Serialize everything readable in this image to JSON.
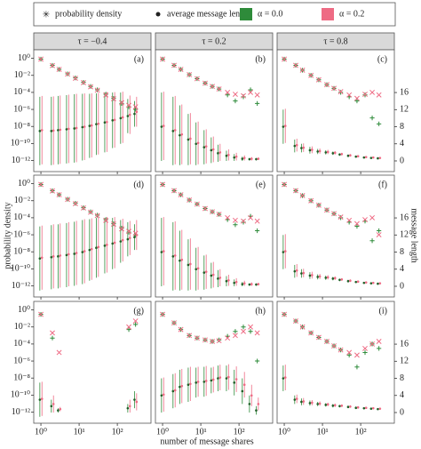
{
  "chart_data": {
    "type": "facet-scatter",
    "legend": {
      "markers": [
        "probability density",
        "average message length"
      ],
      "series": [
        {
          "name": "α = 0.0",
          "color": "#2e8b3a"
        },
        {
          "name": "α = 0.2",
          "color": "#ee6b84"
        }
      ]
    },
    "columns": [
      "τ = −0.4",
      "τ = 0.2",
      "τ = 0.8"
    ],
    "xlabel": "number of message shares",
    "ylabel": "probability density",
    "y2label": "message length",
    "log_x": true,
    "log_y": true,
    "x": [
      1,
      2,
      3,
      5,
      8,
      13,
      20,
      30,
      50,
      80,
      130,
      200,
      300
    ],
    "xlim": [
      0.65,
      760
    ],
    "xticks": [
      {
        "value": 1,
        "label": "10⁰"
      },
      {
        "value": 10,
        "label": "10¹"
      },
      {
        "value": 100,
        "label": "10²"
      }
    ],
    "ylim": [
      5e-14,
      10
    ],
    "yticks": [
      {
        "value": 1,
        "label": "10⁰"
      },
      {
        "value": 0.01,
        "label": "10⁻²"
      },
      {
        "value": 0.0001,
        "label": "10⁻⁴"
      },
      {
        "value": 1e-06,
        "label": "10⁻⁶"
      },
      {
        "value": 1e-08,
        "label": "10⁻⁸"
      },
      {
        "value": 1e-10,
        "label": "10⁻¹⁰"
      },
      {
        "value": 1e-12,
        "label": "10⁻¹²"
      }
    ],
    "y2lim": [
      -2.5,
      26
    ],
    "y2ticks": [
      0,
      4,
      8,
      12,
      16
    ],
    "panels": [
      {
        "label": "(a)",
        "series": [
          {
            "density": [
              0.8,
              0.15,
              0.05,
              0.015,
              0.005,
              0.0015,
              0.0005,
              0.0002,
              6e-05,
              2e-05,
              5e-06,
              2e-06,
              1e-06
            ],
            "length": [
              7,
              7,
              7.2,
              7.4,
              7.6,
              7.9,
              8.2,
              8.6,
              9,
              9.5,
              10,
              10.5,
              11
            ],
            "length_err": [
              8,
              8,
              8,
              8,
              8,
              7.8,
              7.5,
              7.2,
              7,
              6.5,
              6,
              4,
              3
            ]
          },
          {
            "density": [
              0.8,
              0.14,
              0.05,
              0.014,
              0.0045,
              0.0014,
              0.00045,
              0.00018,
              5e-05,
              1.8e-05,
              6e-06,
              3e-06,
              2e-06
            ],
            "length": [
              7.2,
              7.1,
              7.3,
              7.5,
              7.7,
              8,
              8.3,
              8.7,
              9.1,
              9.6,
              10.2,
              10.8,
              11.5
            ],
            "length_err": [
              8,
              8,
              8,
              8,
              8,
              7.8,
              7.5,
              7.2,
              7,
              6.5,
              6,
              4.5,
              3.5
            ]
          }
        ]
      },
      {
        "label": "(b)",
        "series": [
          {
            "density": [
              0.8,
              0.15,
              0.05,
              0.012,
              0.004,
              0.0012,
              0.0005,
              0.00025,
              5e-05,
              1e-05,
              3e-05,
              0.0002,
              5e-06
            ],
            "length": [
              8,
              7,
              6,
              5,
              4,
              3.2,
              2.5,
              1.8,
              1.2,
              0.8,
              0.5,
              0.4,
              0.4
            ],
            "length_err": [
              8,
              8,
              7,
              6,
              5,
              4,
              3,
              2,
              1.2,
              0.8,
              0.5,
              0.3,
              0.3
            ]
          },
          {
            "density": [
              0.8,
              0.15,
              0.05,
              0.012,
              0.004,
              0.0012,
              0.0005,
              0.00025,
              0.0001,
              6e-05,
              4e-05,
              0.0001,
              5e-05
            ],
            "length": [
              8.2,
              7.2,
              6.2,
              5.2,
              4.2,
              3.4,
              2.7,
              2,
              1.4,
              1,
              0.7,
              0.5,
              0.5
            ],
            "length_err": [
              8,
              8,
              7,
              6,
              5,
              4,
              3,
              2,
              1.3,
              0.9,
              0.6,
              0.4,
              0.3
            ]
          }
        ]
      },
      {
        "label": "(c)",
        "series": [
          {
            "density": [
              0.8,
              0.15,
              0.04,
              0.01,
              0.003,
              0.0008,
              0.0003,
              0.0001,
              3e-05,
              1e-05,
              5e-05,
              1e-07,
              2e-08
            ],
            "length": [
              8,
              3.5,
              3,
              2.5,
              2.2,
              2,
              1.8,
              1.5,
              1.2,
              1,
              0.8,
              0.7,
              0.6
            ],
            "length_err": [
              4,
              1.5,
              1,
              0.8,
              0.6,
              0.5,
              0.4,
              0.3,
              0.3,
              0.2,
              0.2,
              0.2,
              0.2
            ]
          },
          {
            "density": [
              0.8,
              0.15,
              0.04,
              0.01,
              0.003,
              0.0008,
              0.0003,
              0.00012,
              5e-05,
              2e-05,
              6e-05,
              0.0001,
              5e-05
            ],
            "length": [
              8.2,
              3.7,
              3.1,
              2.6,
              2.3,
              2.1,
              1.9,
              1.6,
              1.3,
              1.1,
              0.9,
              0.8,
              0.7
            ],
            "length_err": [
              4,
              1.5,
              1,
              0.8,
              0.6,
              0.5,
              0.4,
              0.3,
              0.3,
              0.2,
              0.2,
              0.2,
              0.2
            ]
          }
        ]
      },
      {
        "label": "(d)",
        "series": [
          {
            "density": [
              0.8,
              0.15,
              0.05,
              0.015,
              0.005,
              0.0015,
              0.0005,
              0.0002,
              6e-05,
              2e-05,
              6e-06,
              2e-06,
              1e-06
            ],
            "length": [
              6.5,
              6.8,
              7,
              7.3,
              7.6,
              8,
              8.5,
              9,
              9.5,
              10,
              10.5,
              11,
              11.5
            ],
            "length_err": [
              7.5,
              7.5,
              7.5,
              7.5,
              7.5,
              7.5,
              7.2,
              7,
              6.5,
              6,
              5,
              4,
              3
            ]
          },
          {
            "density": [
              0.8,
              0.14,
              0.05,
              0.014,
              0.0045,
              0.0014,
              0.00045,
              0.00018,
              5e-05,
              1.8e-05,
              5e-06,
              2.5e-06,
              1.5e-06
            ],
            "length": [
              6.7,
              7,
              7.2,
              7.5,
              7.8,
              8.2,
              8.7,
              9.2,
              9.7,
              10.2,
              10.8,
              11.3,
              12
            ],
            "length_err": [
              7.5,
              7.5,
              7.5,
              7.5,
              7.5,
              7.5,
              7.2,
              7,
              6.5,
              6,
              5,
              4,
              3.5
            ]
          }
        ]
      },
      {
        "label": "(e)",
        "series": [
          {
            "density": [
              0.8,
              0.15,
              0.05,
              0.012,
              0.004,
              0.0012,
              0.0005,
              0.00025,
              6e-05,
              1.5e-05,
              3e-05,
              0.00015,
              3e-06
            ],
            "length": [
              8,
              7,
              6,
              5,
              4,
              3.2,
              2.5,
              1.8,
              1.2,
              0.8,
              0.5,
              0.4,
              0.4
            ],
            "length_err": [
              8,
              8,
              7,
              6,
              5,
              4,
              3,
              2,
              1.2,
              0.8,
              0.5,
              0.3,
              0.3
            ]
          },
          {
            "density": [
              0.8,
              0.15,
              0.05,
              0.012,
              0.004,
              0.0012,
              0.0005,
              0.00025,
              0.0001,
              5e-05,
              4e-05,
              0.0001,
              4e-05
            ],
            "length": [
              8.2,
              7.2,
              6.2,
              5.2,
              4.2,
              3.4,
              2.7,
              2,
              1.4,
              1,
              0.7,
              0.5,
              0.5
            ],
            "length_err": [
              8,
              8,
              7,
              6,
              5,
              4,
              3,
              2,
              1.3,
              0.9,
              0.6,
              0.4,
              0.3
            ]
          }
        ]
      },
      {
        "label": "(f)",
        "series": [
          {
            "density": [
              0.8,
              0.15,
              0.04,
              0.01,
              0.003,
              0.0008,
              0.0003,
              0.0001,
              3e-05,
              1e-05,
              4e-05,
              2e-07,
              3e-06
            ],
            "length": [
              8,
              3.5,
              3,
              2.5,
              2.2,
              2,
              1.8,
              1.5,
              1.2,
              1,
              0.8,
              0.7,
              0.6
            ],
            "length_err": [
              4,
              1.5,
              1,
              0.8,
              0.6,
              0.5,
              0.4,
              0.3,
              0.3,
              0.2,
              0.2,
              0.2,
              0.2
            ]
          },
          {
            "density": [
              0.8,
              0.15,
              0.04,
              0.01,
              0.003,
              0.0008,
              0.0003,
              0.00012,
              5e-05,
              2e-05,
              6e-05,
              0.0001,
              1e-06
            ],
            "length": [
              8.2,
              3.7,
              3.1,
              2.6,
              2.3,
              2.1,
              1.9,
              1.6,
              1.3,
              1.1,
              0.9,
              0.8,
              0.7
            ],
            "length_err": [
              4,
              1.5,
              1,
              0.8,
              0.6,
              0.5,
              0.4,
              0.3,
              0.3,
              0.2,
              0.2,
              0.2,
              0.2
            ]
          }
        ]
      },
      {
        "label": "(g)",
        "series": [
          {
            "density": [
              0.3,
              0.0005,
              null,
              null,
              null,
              null,
              null,
              null,
              null,
              null,
              null,
              0.005,
              0.02
            ],
            "length": [
              3,
              1.5,
              0.5,
              null,
              null,
              null,
              null,
              null,
              null,
              null,
              null,
              1,
              3
            ],
            "length_err": [
              4,
              1.5,
              0.5,
              null,
              null,
              null,
              null,
              null,
              null,
              null,
              null,
              1,
              2
            ]
          },
          {
            "density": [
              0.3,
              0.002,
              1e-05,
              null,
              null,
              null,
              null,
              null,
              null,
              null,
              null,
              0.01,
              0.05
            ],
            "length": [
              3.2,
              2,
              0.8,
              null,
              null,
              null,
              null,
              null,
              null,
              null,
              null,
              1.5,
              2.5
            ],
            "length_err": [
              4,
              2,
              0.5,
              null,
              null,
              null,
              null,
              null,
              null,
              null,
              null,
              1.5,
              2
            ]
          }
        ]
      },
      {
        "label": "(h)",
        "series": [
          {
            "density": [
              0.3,
              0.03,
              0.005,
              0.001,
              0.0005,
              0.0003,
              0.0002,
              0.0003,
              0.0008,
              0.003,
              0.01,
              0.003,
              1e-06
            ],
            "length": [
              4,
              5,
              6,
              6.5,
              7,
              7.2,
              7.5,
              8,
              8,
              7,
              5,
              2,
              0.5
            ],
            "length_err": [
              4,
              4,
              4,
              4,
              3.5,
              3.5,
              3,
              3,
              3,
              3,
              3,
              2,
              1
            ]
          },
          {
            "density": [
              0.3,
              0.03,
              0.005,
              0.001,
              0.0005,
              0.0003,
              0.0002,
              0.00025,
              0.0005,
              0.001,
              0.003,
              0.01,
              0.002
            ],
            "length": [
              4.2,
              5.2,
              6.2,
              6.7,
              7.2,
              7.4,
              7.7,
              8.2,
              8.3,
              7.8,
              6.5,
              4,
              2
            ],
            "length_err": [
              4,
              4,
              4,
              4,
              3.5,
              3.5,
              3,
              3,
              3,
              3,
              3,
              2.5,
              1.5
            ]
          }
        ]
      },
      {
        "label": "(i)",
        "series": [
          {
            "density": [
              0.3,
              0.05,
              0.01,
              0.002,
              0.0006,
              0.0002,
              6e-05,
              2e-05,
              5e-06,
              2e-07,
              1e-05,
              0.0001,
              3e-05
            ],
            "length": [
              8,
              3,
              2.5,
              2.2,
              2,
              1.8,
              1.6,
              1.5,
              1.3,
              1.1,
              1,
              0.9,
              0.8
            ],
            "length_err": [
              3,
              1,
              0.8,
              0.6,
              0.5,
              0.4,
              0.4,
              0.3,
              0.3,
              0.3,
              0.2,
              0.2,
              0.2
            ]
          },
          {
            "density": [
              0.3,
              0.05,
              0.01,
              0.002,
              0.0006,
              0.0002,
              6e-05,
              2e-05,
              1e-05,
              5e-06,
              3e-05,
              0.0001,
              0.0002
            ],
            "length": [
              8.2,
              3.2,
              2.6,
              2.3,
              2.1,
              1.9,
              1.7,
              1.6,
              1.4,
              1.2,
              1.1,
              1,
              0.9
            ],
            "length_err": [
              3,
              1,
              0.8,
              0.6,
              0.5,
              0.4,
              0.4,
              0.3,
              0.3,
              0.3,
              0.2,
              0.2,
              0.2
            ]
          }
        ]
      }
    ]
  }
}
